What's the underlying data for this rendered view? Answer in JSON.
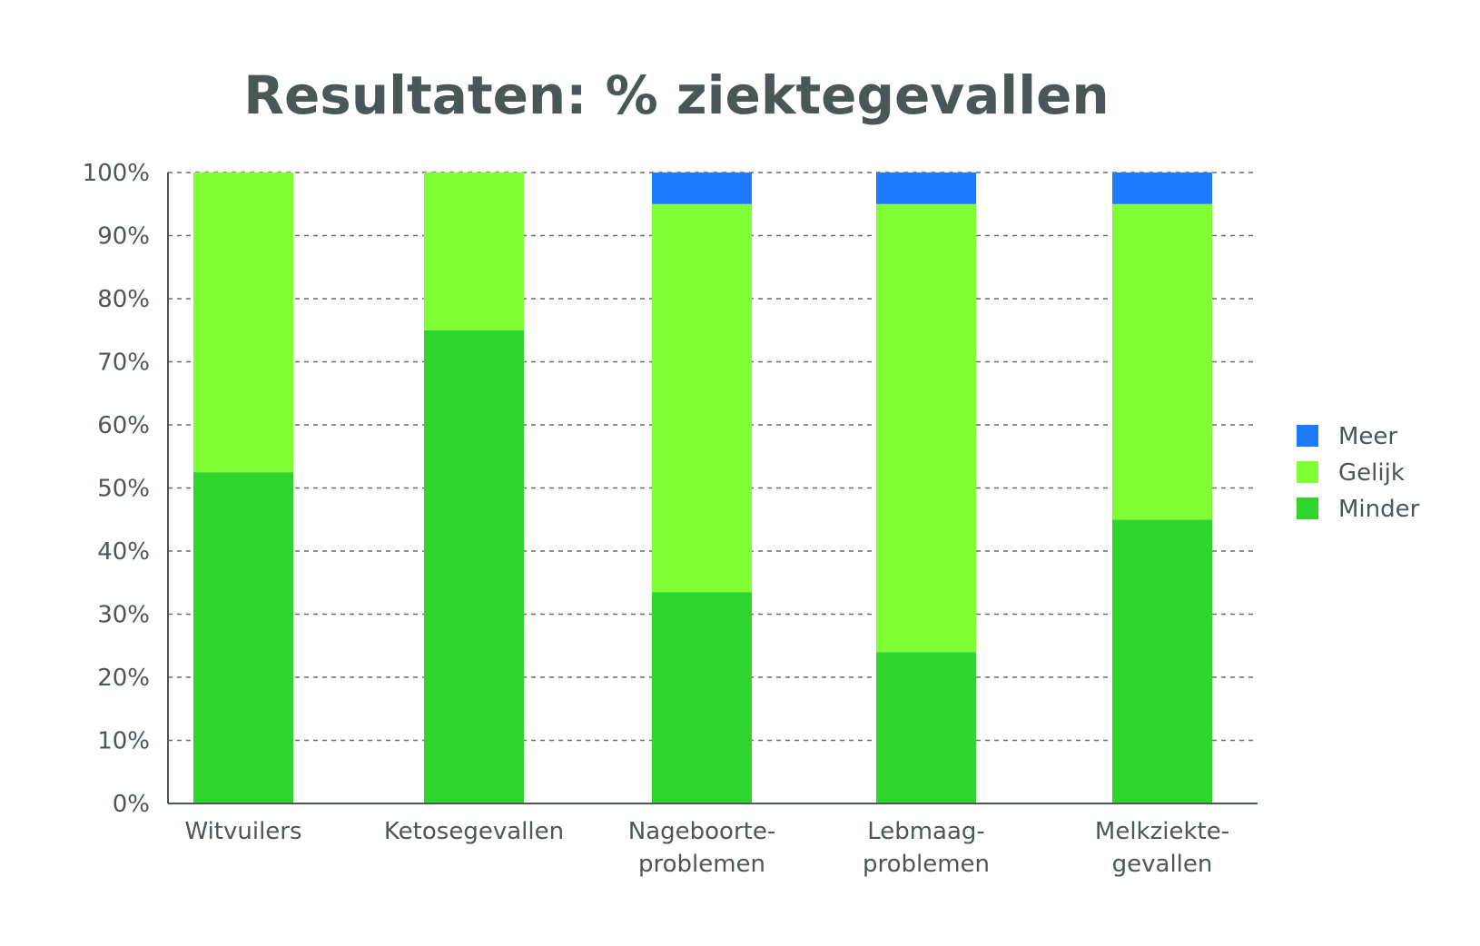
{
  "chart_data": {
    "type": "bar",
    "stacked": true,
    "title": "Resultaten: % ziektegevallen",
    "xlabel": "",
    "ylabel": "",
    "ylim": [
      0,
      100
    ],
    "y_ticks": [
      "0%",
      "10%",
      "20%",
      "30%",
      "40%",
      "50%",
      "60%",
      "70%",
      "80%",
      "90%",
      "100%"
    ],
    "grid": true,
    "legend_position": "right",
    "categories": [
      [
        "Witvuilers"
      ],
      [
        "Ketosegevallen"
      ],
      [
        "Nageboorte-",
        "problemen"
      ],
      [
        "Lebmaag-",
        "problemen"
      ],
      [
        "Melkziekte-",
        "gevallen"
      ]
    ],
    "series": [
      {
        "name": "Minder",
        "color": "#2dd52d",
        "values": [
          52.5,
          75,
          33.5,
          24,
          45
        ]
      },
      {
        "name": "Gelijk",
        "color": "#80ff36",
        "values": [
          47.5,
          25,
          61.5,
          71,
          50
        ]
      },
      {
        "name": "Meer",
        "color": "#1e7bff",
        "values": [
          0,
          0,
          5,
          5,
          5
        ]
      }
    ],
    "legend_order": [
      "Meer",
      "Gelijk",
      "Minder"
    ],
    "colors": {
      "text": "#4a5759",
      "axis": "#4a5759",
      "grid": "#6b6b6b"
    }
  }
}
